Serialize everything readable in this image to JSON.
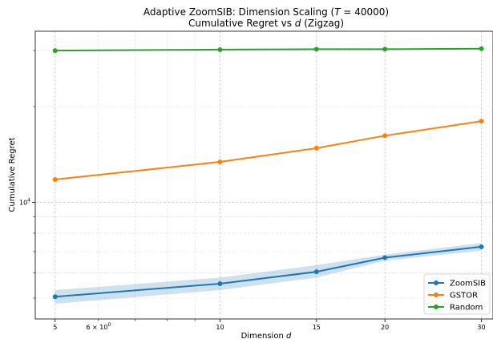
{
  "chart_data": {
    "type": "line",
    "title_line1": "Adaptive ZoomSIB: Dimension Scaling (T = 40000)",
    "title_line1_prefix": "Adaptive ZoomSIB: Dimension Scaling (",
    "title_line1_var": "T",
    "title_line1_suffix": " = 40000)",
    "title_line2": "Cumulative Regret vs d  (Zigzag)",
    "title_line2_prefix": "Cumulative Regret vs ",
    "title_line2_var": "d",
    "title_line2_suffix": "  (Zigzag)",
    "xlabel": "Dimension d",
    "xlabel_prefix": "Dimension ",
    "xlabel_var": "d",
    "ylabel": "Cumulative Regret",
    "x_scale": "log",
    "y_scale": "log",
    "xlim": [
      4.6,
      31.5
    ],
    "ylim": [
      4300,
      34500
    ],
    "x_major_ticks": [
      5,
      10,
      15,
      20,
      30
    ],
    "x_major_tick_labels": [
      "5",
      "10",
      "15",
      "20",
      "30"
    ],
    "x_minor_label": {
      "value": 6,
      "base": "6 × 10",
      "exp": "0"
    },
    "y_major_tick": {
      "value": 10000,
      "base": "10",
      "exp": "4"
    },
    "y_minor_ticks": [
      5000,
      6000,
      7000,
      8000,
      9000,
      20000,
      30000
    ],
    "x": [
      5,
      10,
      15,
      20,
      30
    ],
    "series": [
      {
        "name": "ZoomSIB",
        "color": "#1f77b4",
        "values": [
          5050,
          5550,
          6050,
          6700,
          7250
        ],
        "band_low": [
          4800,
          5300,
          5800,
          6550,
          7050
        ],
        "band_high": [
          5300,
          5800,
          6350,
          6850,
          7450
        ]
      },
      {
        "name": "GSTOR",
        "color": "#ff7f0e",
        "values": [
          11800,
          13400,
          14800,
          16200,
          18000
        ]
      },
      {
        "name": "Random",
        "color": "#2ca02c",
        "values": [
          30000,
          30200,
          30300,
          30300,
          30400
        ]
      }
    ],
    "grid": true,
    "legend_position": "lower-right"
  }
}
